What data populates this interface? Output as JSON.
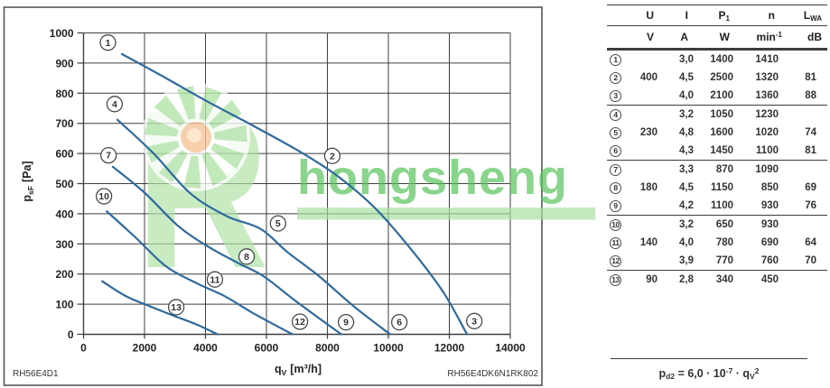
{
  "watermark": {
    "logo_letter": "R",
    "text": "hongsheng",
    "colors": {
      "shape_green": "#aee2a4",
      "text_green": "#58c45c",
      "bar_green": "#a6dfa0",
      "orange": "#f6c193",
      "orange_core": "#fce3c6"
    }
  },
  "chart_data": {
    "type": "line",
    "title": "",
    "xlabel": {
      "sym": "q",
      "sub": "V",
      "unit": "[m³/h]"
    },
    "ylabel": {
      "sym": "p",
      "sub": "sF",
      "unit": "[Pa]"
    },
    "x_axis": {
      "min": 0,
      "max": 14000,
      "tick_step": 2000
    },
    "y_axis": {
      "min": 0,
      "max": 1000,
      "tick_step": 100
    },
    "grid": "on",
    "model_left": "RH56E4D1",
    "model_right": "RH56E4DK6N1RK802",
    "curve_color": "#2e6a9e",
    "series": [
      {
        "name": "curve-400V",
        "voltage": "400 V",
        "operating_points": [
          "1",
          "2",
          "3"
        ],
        "points": [
          [
            1260,
            930
          ],
          [
            2600,
            856
          ],
          [
            4000,
            776
          ],
          [
            5600,
            690
          ],
          [
            7200,
            600
          ],
          [
            8400,
            520
          ],
          [
            9600,
            415
          ],
          [
            10800,
            275
          ],
          [
            11800,
            140
          ],
          [
            12580,
            0
          ]
        ]
      },
      {
        "name": "curve-230V",
        "voltage": "230 V",
        "operating_points": [
          "4",
          "5",
          "6"
        ],
        "points": [
          [
            1110,
            712
          ],
          [
            2300,
            600
          ],
          [
            3500,
            468
          ],
          [
            4700,
            392
          ],
          [
            5800,
            350
          ],
          [
            6700,
            272
          ],
          [
            7700,
            195
          ],
          [
            8900,
            90
          ],
          [
            10060,
            0
          ]
        ]
      },
      {
        "name": "curve-180V",
        "voltage": "180 V",
        "operating_points": [
          "7",
          "8",
          "9"
        ],
        "points": [
          [
            960,
            556
          ],
          [
            2000,
            470
          ],
          [
            3100,
            360
          ],
          [
            4100,
            290
          ],
          [
            5100,
            235
          ],
          [
            5900,
            193
          ],
          [
            6900,
            115
          ],
          [
            7800,
            48
          ],
          [
            8460,
            0
          ]
        ]
      },
      {
        "name": "curve-140V",
        "voltage": "140 V",
        "operating_points": [
          "10",
          "11",
          "12"
        ],
        "points": [
          [
            760,
            408
          ],
          [
            1700,
            322
          ],
          [
            2700,
            226
          ],
          [
            3700,
            170
          ],
          [
            4600,
            128
          ],
          [
            5500,
            74
          ],
          [
            6200,
            35
          ],
          [
            6860,
            0
          ]
        ]
      },
      {
        "name": "curve-90V",
        "voltage": "90 V",
        "operating_points": [
          "13"
        ],
        "points": [
          [
            610,
            176
          ],
          [
            1400,
            126
          ],
          [
            2200,
            92
          ],
          [
            3000,
            60
          ],
          [
            3700,
            33
          ],
          [
            4400,
            0
          ]
        ]
      }
    ],
    "point_labels": [
      {
        "n": "1",
        "x": 800,
        "y": 968
      },
      {
        "n": "2",
        "x": 8160,
        "y": 592
      },
      {
        "n": "3",
        "x": 12820,
        "y": 44
      },
      {
        "n": "4",
        "x": 1020,
        "y": 764
      },
      {
        "n": "5",
        "x": 6380,
        "y": 368
      },
      {
        "n": "6",
        "x": 10360,
        "y": 40
      },
      {
        "n": "7",
        "x": 820,
        "y": 594
      },
      {
        "n": "8",
        "x": 5350,
        "y": 258
      },
      {
        "n": "9",
        "x": 8610,
        "y": 40
      },
      {
        "n": "10",
        "x": 670,
        "y": 458
      },
      {
        "n": "11",
        "x": 4310,
        "y": 182
      },
      {
        "n": "12",
        "x": 7100,
        "y": 42
      },
      {
        "n": "13",
        "x": 3040,
        "y": 90
      }
    ]
  },
  "table": {
    "headers": {
      "u": "U",
      "i": "I",
      "p_base": "P",
      "p_sub": "1",
      "n": "n",
      "l_base": "L",
      "l_sub": "WA"
    },
    "units": {
      "u": "V",
      "i": "A",
      "w": "W",
      "min_base": "min",
      "min_sup": "-1",
      "db": "dB"
    },
    "groups": [
      {
        "rows": [
          {
            "no": "1",
            "u": "",
            "i": "3,0",
            "p1": "1400",
            "n": "1410",
            "lwa": ""
          },
          {
            "no": "2",
            "u": "400",
            "i": "4,5",
            "p1": "2500",
            "n": "1320",
            "lwa": "81"
          },
          {
            "no": "3",
            "u": "",
            "i": "4,0",
            "p1": "2100",
            "n": "1360",
            "lwa": "88"
          }
        ]
      },
      {
        "rows": [
          {
            "no": "4",
            "u": "",
            "i": "3,2",
            "p1": "1050",
            "n": "1230",
            "lwa": ""
          },
          {
            "no": "5",
            "u": "230",
            "i": "4,8",
            "p1": "1600",
            "n": "1020",
            "lwa": "74"
          },
          {
            "no": "6",
            "u": "",
            "i": "4,3",
            "p1": "1450",
            "n": "1100",
            "lwa": "81"
          }
        ]
      },
      {
        "rows": [
          {
            "no": "7",
            "u": "",
            "i": "3,3",
            "p1": "870",
            "n": "1090",
            "lwa": ""
          },
          {
            "no": "8",
            "u": "180",
            "i": "4,5",
            "p1": "1150",
            "n": "850",
            "lwa": "69"
          },
          {
            "no": "9",
            "u": "",
            "i": "4,2",
            "p1": "1100",
            "n": "930",
            "lwa": "76"
          }
        ]
      },
      {
        "rows": [
          {
            "no": "10",
            "u": "",
            "i": "3,2",
            "p1": "650",
            "n": "930",
            "lwa": ""
          },
          {
            "no": "11",
            "u": "140",
            "i": "4,0",
            "p1": "780",
            "n": "690",
            "lwa": "64"
          },
          {
            "no": "12",
            "u": "",
            "i": "3,9",
            "p1": "770",
            "n": "760",
            "lwa": "70"
          }
        ]
      },
      {
        "rows": [
          {
            "no": "13",
            "u": "90",
            "i": "2,8",
            "p1": "340",
            "n": "450",
            "lwa": ""
          }
        ]
      }
    ],
    "formula": {
      "lhs_base": "p",
      "lhs_sub": "d2",
      "eq": " = 6,0 · 10",
      "exp": "-7",
      "mul": " · q",
      "q_sub": "V",
      "q_sup": "2"
    }
  }
}
